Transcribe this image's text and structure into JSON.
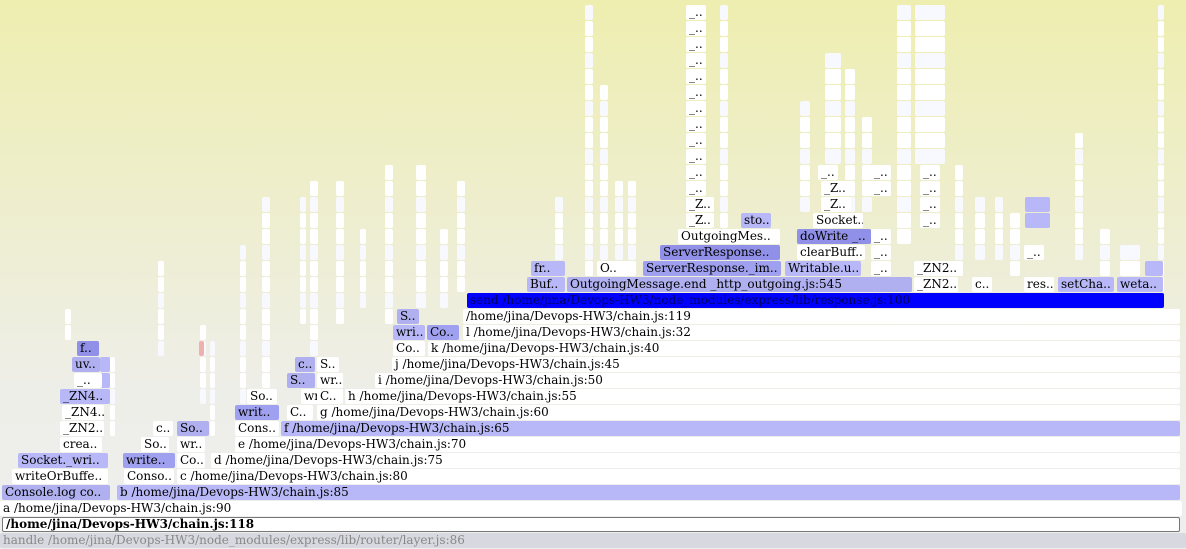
{
  "frames": [
    {
      "label": "handle /home/jina/Devops-HW3/node_modules/express/lib/router/layer.js:86"
    },
    {
      "label": "/home/jina/Devops-HW3/chain.js:118"
    },
    {
      "label": "a /home/jina/Devops-HW3/chain.js:90"
    },
    {
      "label": "Console.log co.."
    },
    {
      "label": "b /home/jina/Devops-HW3/chain.js:85"
    },
    {
      "label": "writeOrBuffe.."
    },
    {
      "label": "Conso.."
    },
    {
      "label": "c /home/jina/Devops-HW3/chain.js:80"
    },
    {
      "label": "Socket._wri.."
    },
    {
      "label": "write.."
    },
    {
      "label": "Co.."
    },
    {
      "label": "d /home/jina/Devops-HW3/chain.js:75"
    },
    {
      "label": "crea.."
    },
    {
      "label": "So.."
    },
    {
      "label": "wr.."
    },
    {
      "label": "e /home/jina/Devops-HW3/chain.js:70"
    },
    {
      "label": "_ZN2.."
    },
    {
      "label": "c.."
    },
    {
      "label": "So.."
    },
    {
      "label": "Cons.."
    },
    {
      "label": "f /home/jina/Devops-HW3/chain.js:65"
    },
    {
      "label": "_ZN4.."
    },
    {
      "label": "writ.."
    },
    {
      "label": "C.."
    },
    {
      "label": "g /home/jina/Devops-HW3/chain.js:60"
    },
    {
      "label": "_ZN4.."
    },
    {
      "label": "So.."
    },
    {
      "label": "wr.."
    },
    {
      "label": "C.."
    },
    {
      "label": "h /home/jina/Devops-HW3/chain.js:55"
    },
    {
      "label": "_.."
    },
    {
      "label": "S.."
    },
    {
      "label": "wr.."
    },
    {
      "label": "i /home/jina/Devops-HW3/chain.js:50"
    },
    {
      "label": "uv.."
    },
    {
      "label": "c.."
    },
    {
      "label": "S.."
    },
    {
      "label": "j /home/jina/Devops-HW3/chain.js:45"
    },
    {
      "label": "f.."
    },
    {
      "label": "Co.."
    },
    {
      "label": "k /home/jina/Devops-HW3/chain.js:40"
    },
    {
      "label": "wri.."
    },
    {
      "label": "Co.."
    },
    {
      "label": "l /home/jina/Devops-HW3/chain.js:32"
    },
    {
      "label": "S.."
    },
    {
      "label": "/home/jina/Devops-HW3/chain.js:119"
    },
    {
      "label": "send /home/jina/Devops-HW3/node_modules/express/lib/response.js:100"
    },
    {
      "label": "Buf.."
    },
    {
      "label": "OutgoingMessage.end _http_outgoing.js:545"
    },
    {
      "label": "_ZN2.."
    },
    {
      "label": "c.."
    },
    {
      "label": "res.."
    },
    {
      "label": "setCha.."
    },
    {
      "label": "weta.."
    },
    {
      "label": "fr.."
    },
    {
      "label": "O.."
    },
    {
      "label": "ServerResponse._im.."
    },
    {
      "label": "Writable.u.."
    },
    {
      "label": "_.."
    },
    {
      "label": "_ZN2.."
    },
    {
      "label": "ServerResponse.."
    },
    {
      "label": "clearBuff.."
    },
    {
      "label": "_.."
    },
    {
      "label": "_.."
    },
    {
      "label": "OutgoingMes.."
    },
    {
      "label": "doWrite _.."
    },
    {
      "label": "_.."
    },
    {
      "label": "_Z.."
    },
    {
      "label": "sto.."
    },
    {
      "label": "Socket.."
    },
    {
      "label": "_.."
    },
    {
      "label": "_Z.."
    },
    {
      "label": "_Z.."
    },
    {
      "label": "_.."
    },
    {
      "label": "_.."
    },
    {
      "label": "_Z.."
    },
    {
      "label": "_.."
    },
    {
      "label": "_.."
    },
    {
      "label": "_.."
    },
    {
      "label": "_.."
    },
    {
      "label": "_.."
    },
    {
      "label": "_.."
    },
    {
      "label": "_.."
    },
    {
      "label": "_.."
    },
    {
      "label": "_.."
    },
    {
      "label": "_.."
    },
    {
      "label": "_.."
    },
    {
      "label": "_.."
    },
    {
      "label": "_.."
    },
    {
      "label": "_.."
    },
    {
      "label": "_.."
    },
    {
      "label": "_.."
    }
  ]
}
